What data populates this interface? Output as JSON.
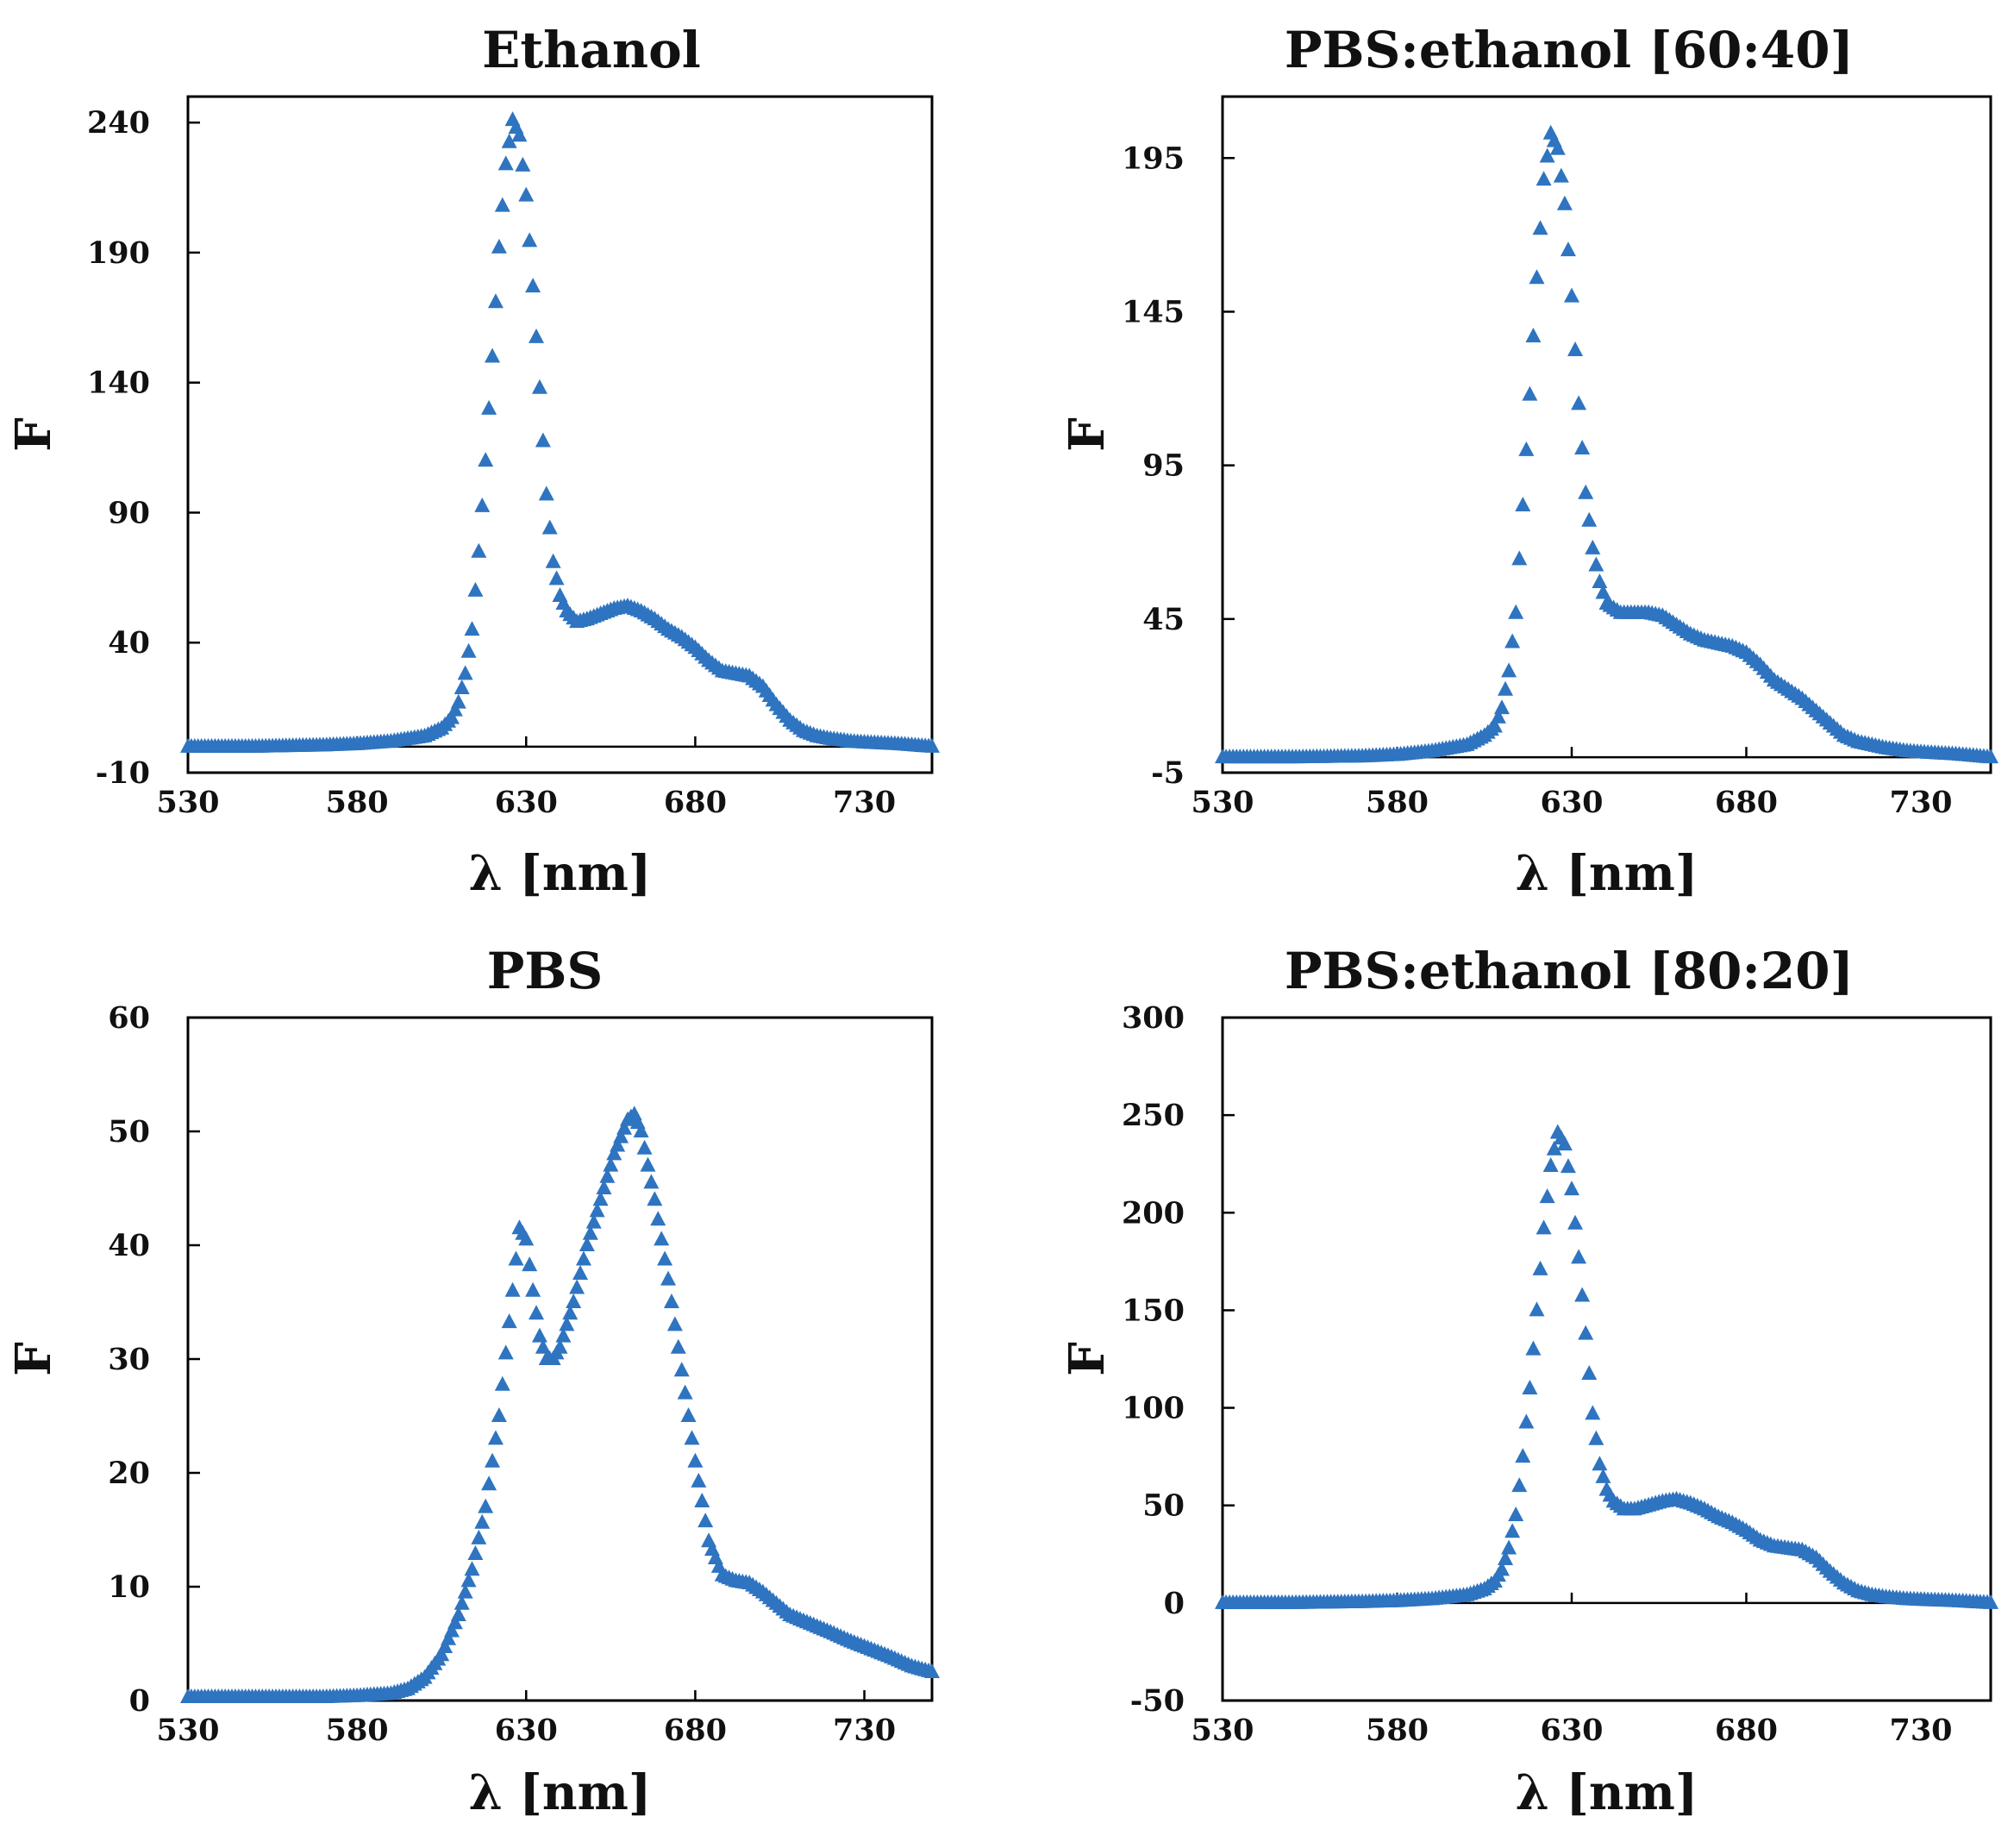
{
  "chart_data": [
    {
      "type": "scatter",
      "title": "Ethanol",
      "xlabel": "λ   [nm]",
      "ylabel": "F",
      "xlim": [
        530,
        750
      ],
      "ylim": [
        -10,
        250
      ],
      "xticks": [
        530,
        580,
        630,
        680,
        730
      ],
      "yticks": [
        -10,
        40,
        90,
        140,
        190,
        240
      ],
      "marker": "triangle",
      "color": "#2e74c0",
      "series": [
        {
          "name": "Ethanol",
          "x": [
            530,
            550,
            570,
            580,
            590,
            600,
            605,
            608,
            610,
            612,
            614,
            616,
            618,
            620,
            622,
            624,
            626,
            628,
            630,
            632,
            634,
            636,
            638,
            640,
            642,
            645,
            648,
            652,
            656,
            660,
            664,
            668,
            672,
            676,
            680,
            684,
            688,
            692,
            696,
            700,
            704,
            708,
            712,
            716,
            720,
            726,
            732,
            740,
            750
          ],
          "y": [
            0,
            0,
            0.5,
            1,
            2,
            4,
            7,
            11,
            17,
            28,
            45,
            75,
            110,
            150,
            192,
            224,
            241,
            235,
            212,
            177,
            138,
            97,
            71,
            58,
            52,
            48,
            49,
            51,
            53,
            54,
            52,
            49,
            45,
            42,
            38,
            33,
            29,
            28,
            27,
            23,
            16,
            10,
            6,
            4,
            3,
            2,
            1.5,
            1,
            0
          ]
        }
      ]
    },
    {
      "type": "scatter",
      "title": "PBS:ethanol [60:40]",
      "xlabel": "λ   [nm]",
      "ylabel": "F",
      "xlim": [
        530,
        750
      ],
      "ylim": [
        -5,
        215
      ],
      "xticks": [
        530,
        580,
        630,
        680,
        730
      ],
      "yticks": [
        -5,
        45,
        95,
        145,
        195
      ],
      "marker": "triangle",
      "color": "#2e74c0",
      "series": [
        {
          "name": "PBS:ethanol [60:40]",
          "x": [
            530,
            550,
            570,
            580,
            590,
            600,
            605,
            608,
            610,
            612,
            614,
            616,
            618,
            620,
            622,
            624,
            626,
            628,
            630,
            632,
            634,
            636,
            638,
            640,
            644,
            648,
            652,
            656,
            660,
            664,
            668,
            672,
            676,
            680,
            684,
            688,
            692,
            696,
            700,
            704,
            708,
            712,
            716,
            720,
            726,
            732,
            740,
            750
          ],
          "y": [
            0,
            0,
            0.3,
            0.8,
            2,
            4,
            7,
            10,
            16,
            28,
            47,
            82,
            118,
            156,
            188,
            203,
            198,
            180,
            150,
            115,
            86,
            68,
            57,
            50,
            47,
            47,
            47,
            46,
            43,
            40,
            38,
            37,
            36,
            34,
            30,
            25,
            22,
            19,
            15,
            11,
            7,
            5,
            4,
            3,
            2,
            1.5,
            1,
            0
          ]
        }
      ]
    },
    {
      "type": "scatter",
      "title": "PBS",
      "xlabel": "λ   [nm]",
      "ylabel": "F",
      "xlim": [
        530,
        750
      ],
      "ylim": [
        0,
        60
      ],
      "xticks": [
        530,
        580,
        630,
        680,
        730
      ],
      "yticks": [
        0,
        10,
        20,
        30,
        40,
        50,
        60
      ],
      "marker": "triangle",
      "color": "#2e74c0",
      "series": [
        {
          "name": "PBS",
          "x": [
            530,
            550,
            570,
            580,
            590,
            595,
            600,
            605,
            610,
            614,
            618,
            622,
            626,
            628,
            630,
            632,
            634,
            636,
            638,
            640,
            644,
            648,
            652,
            656,
            660,
            662,
            664,
            666,
            668,
            672,
            676,
            680,
            684,
            688,
            692,
            696,
            700,
            704,
            708,
            712,
            716,
            720,
            726,
            732,
            738,
            744,
            750
          ],
          "y": [
            0.3,
            0.3,
            0.3,
            0.4,
            0.6,
            1,
            2,
            4,
            7.5,
            11.5,
            17,
            25,
            36,
            41.5,
            40.5,
            36,
            32,
            30,
            30,
            31,
            35,
            40,
            44,
            48,
            51,
            51.5,
            50,
            47,
            44,
            37,
            29,
            21,
            14,
            11,
            10.5,
            10.3,
            9.5,
            8.5,
            7.5,
            7,
            6.5,
            6,
            5.2,
            4.5,
            3.8,
            3,
            2.5
          ]
        }
      ]
    },
    {
      "type": "scatter",
      "title": "PBS:ethanol [80:20]",
      "xlabel": "λ   [nm]",
      "ylabel": "F",
      "xlim": [
        530,
        750
      ],
      "ylim": [
        -50,
        300
      ],
      "xticks": [
        530,
        580,
        630,
        680,
        730
      ],
      "yticks": [
        -50,
        0,
        50,
        100,
        150,
        200,
        250,
        300
      ],
      "marker": "triangle",
      "color": "#2e74c0",
      "series": [
        {
          "name": "PBS:ethanol [80:20]",
          "x": [
            530,
            550,
            570,
            580,
            590,
            600,
            605,
            608,
            610,
            612,
            614,
            616,
            618,
            620,
            622,
            624,
            626,
            628,
            630,
            632,
            634,
            636,
            638,
            640,
            642,
            645,
            648,
            652,
            656,
            660,
            664,
            668,
            672,
            676,
            680,
            684,
            688,
            692,
            696,
            700,
            704,
            708,
            712,
            716,
            720,
            726,
            732,
            740,
            750
          ],
          "y": [
            0,
            0,
            0.5,
            1,
            2,
            4,
            7,
            11,
            17,
            28,
            45,
            75,
            110,
            150,
            192,
            224,
            241,
            235,
            212,
            177,
            138,
            97,
            71,
            58,
            52,
            48,
            48,
            50,
            52,
            53,
            51,
            48,
            44,
            41,
            37,
            32,
            29,
            28,
            27,
            23,
            16,
            10,
            6,
            4,
            3,
            2,
            1.5,
            1,
            0
          ]
        }
      ]
    }
  ]
}
